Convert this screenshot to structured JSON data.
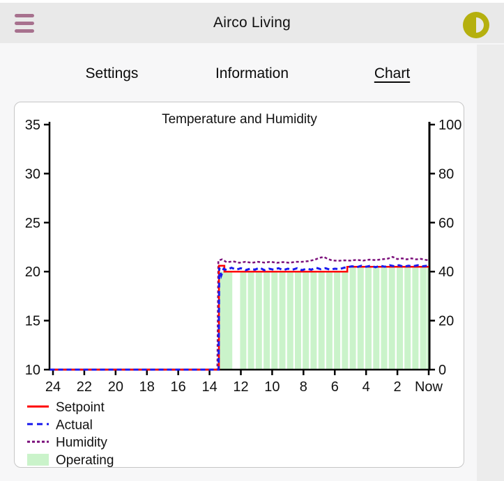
{
  "header": {
    "title": "Airco Living"
  },
  "icons": {
    "menu": "hamburger-icon",
    "theme": "contrast-half-circle-icon"
  },
  "colors": {
    "header_bg": "#e9e9e9",
    "menu_icon": "#a7718e",
    "theme_icon": "#b5b00f",
    "setpoint": "#ff0000",
    "actual": "#1a1aee",
    "humidity": "#7c117c",
    "operating_fill": "#caf3ca"
  },
  "tabs": [
    {
      "label": "Settings",
      "active": false
    },
    {
      "label": "Information",
      "active": false
    },
    {
      "label": "Chart",
      "active": true
    }
  ],
  "chart_data": {
    "type": "line",
    "title": "Temperature and Humidity",
    "x_axis": {
      "labels": [
        "24",
        "22",
        "20",
        "18",
        "16",
        "14",
        "12",
        "10",
        "8",
        "6",
        "4",
        "2",
        "Now"
      ],
      "hours_range": [
        24,
        0
      ]
    },
    "y_left": {
      "ticks": [
        10,
        15,
        20,
        25,
        30,
        35
      ],
      "range": [
        10,
        35
      ]
    },
    "y_right": {
      "ticks": [
        0,
        20,
        40,
        60,
        80,
        100
      ],
      "range": [
        0,
        100
      ]
    },
    "series": [
      {
        "name": "Humidity",
        "axis": "right",
        "color": "#7c117c",
        "width": 2.5,
        "dash": "4,3",
        "points": [
          [
            24.2,
            0
          ],
          [
            13.5,
            0
          ],
          [
            13.44,
            44.5
          ],
          [
            13.2,
            45
          ],
          [
            12.9,
            43.8
          ],
          [
            12.5,
            44.2
          ],
          [
            12.1,
            43.6
          ],
          [
            11.7,
            44
          ],
          [
            11.3,
            43.6
          ],
          [
            10.9,
            44
          ],
          [
            10.5,
            43.7
          ],
          [
            10.1,
            44
          ],
          [
            9.7,
            43.6
          ],
          [
            9.3,
            43.9
          ],
          [
            8.9,
            43.6
          ],
          [
            8.5,
            44
          ],
          [
            8.1,
            44
          ],
          [
            7.7,
            44.3
          ],
          [
            7.3,
            44.8
          ],
          [
            7.0,
            45.6
          ],
          [
            6.7,
            46
          ],
          [
            6.45,
            45.2
          ],
          [
            6.2,
            44.6
          ],
          [
            5.8,
            44.4
          ],
          [
            5.4,
            44.6
          ],
          [
            5.0,
            44.5
          ],
          [
            4.6,
            44.8
          ],
          [
            4.2,
            44.5
          ],
          [
            3.8,
            44.9
          ],
          [
            3.4,
            44.7
          ],
          [
            3.0,
            45
          ],
          [
            2.6,
            45.3
          ],
          [
            2.3,
            46
          ],
          [
            2.0,
            45.1
          ],
          [
            1.7,
            45.4
          ],
          [
            1.4,
            45
          ],
          [
            1.1,
            45.4
          ],
          [
            0.8,
            45
          ],
          [
            0.5,
            45.2
          ],
          [
            0.2,
            44.8
          ],
          [
            0,
            44.6
          ]
        ]
      },
      {
        "name": "Setpoint",
        "axis": "left",
        "color": "#ff0000",
        "width": 2.5,
        "points": [
          [
            24.2,
            10
          ],
          [
            13.4,
            10
          ],
          [
            13.4,
            20.6
          ],
          [
            13.05,
            20.6
          ],
          [
            13.05,
            20
          ],
          [
            5.2,
            20
          ],
          [
            5.2,
            20.5
          ],
          [
            0,
            20.5
          ]
        ]
      },
      {
        "name": "Actual",
        "axis": "left",
        "color": "#1a1aee",
        "width": 3,
        "dash": "7,5",
        "points": [
          [
            24.2,
            10
          ],
          [
            13.42,
            10
          ],
          [
            13.38,
            20.4
          ],
          [
            13.25,
            19.6
          ],
          [
            13.1,
            20.3
          ],
          [
            12.9,
            20.15
          ],
          [
            12.6,
            20.4
          ],
          [
            12.3,
            20.2
          ],
          [
            12.0,
            20.35
          ],
          [
            11.7,
            20.15
          ],
          [
            11.4,
            20.3
          ],
          [
            11.1,
            20.2
          ],
          [
            10.8,
            20.4
          ],
          [
            10.5,
            20.15
          ],
          [
            10.2,
            20.3
          ],
          [
            9.9,
            20.2
          ],
          [
            9.6,
            20.35
          ],
          [
            9.3,
            20.15
          ],
          [
            9.0,
            20.3
          ],
          [
            8.7,
            20.2
          ],
          [
            8.4,
            20.35
          ],
          [
            8.1,
            20.15
          ],
          [
            7.8,
            20.3
          ],
          [
            7.5,
            20.2
          ],
          [
            7.2,
            20.4
          ],
          [
            6.9,
            20.25
          ],
          [
            6.6,
            20.35
          ],
          [
            6.3,
            20.2
          ],
          [
            6.0,
            20.3
          ],
          [
            5.7,
            20.25
          ],
          [
            5.4,
            20.4
          ],
          [
            5.2,
            20.45
          ],
          [
            4.9,
            20.55
          ],
          [
            4.6,
            20.45
          ],
          [
            4.3,
            20.6
          ],
          [
            4.0,
            20.5
          ],
          [
            3.7,
            20.6
          ],
          [
            3.4,
            20.45
          ],
          [
            3.1,
            20.6
          ],
          [
            2.8,
            20.5
          ],
          [
            2.5,
            20.65
          ],
          [
            2.2,
            20.55
          ],
          [
            1.9,
            20.65
          ],
          [
            1.6,
            20.5
          ],
          [
            1.3,
            20.6
          ],
          [
            1.0,
            20.55
          ],
          [
            0.7,
            20.65
          ],
          [
            0.4,
            20.55
          ],
          [
            0.1,
            20.6
          ],
          [
            0,
            20.6
          ]
        ]
      }
    ],
    "operating": {
      "name": "Operating",
      "color": "#caf3ca",
      "top_follows": "Setpoint",
      "bars": [
        [
          13.4,
          12.55
        ],
        [
          12.05,
          11.65
        ],
        [
          11.55,
          11.15
        ],
        [
          11.05,
          10.65
        ],
        [
          10.55,
          10.15
        ],
        [
          10.05,
          9.65
        ],
        [
          9.55,
          9.15
        ],
        [
          9.05,
          8.65
        ],
        [
          8.55,
          8.15
        ],
        [
          8.05,
          7.65
        ],
        [
          7.55,
          7.15
        ],
        [
          7.05,
          6.65
        ],
        [
          6.55,
          6.15
        ],
        [
          6.05,
          5.65
        ],
        [
          5.55,
          5.15
        ],
        [
          5.05,
          4.65
        ],
        [
          4.55,
          4.15
        ],
        [
          4.05,
          3.65
        ],
        [
          3.55,
          3.15
        ],
        [
          3.05,
          2.65
        ],
        [
          2.55,
          2.15
        ],
        [
          2.05,
          1.65
        ],
        [
          1.55,
          1.15
        ],
        [
          1.05,
          0.65
        ],
        [
          0.55,
          0.15
        ],
        [
          0.12,
          0
        ]
      ]
    },
    "legend": [
      {
        "label": "Setpoint",
        "swatch": "line-solid",
        "color": "#ff0000"
      },
      {
        "label": "Actual",
        "swatch": "line-dashed",
        "color": "#1a1aee",
        "dash": "8,6"
      },
      {
        "label": "Humidity",
        "swatch": "line-dashed",
        "color": "#7c117c",
        "dash": "4,3"
      },
      {
        "label": "Operating",
        "swatch": "rect",
        "color": "#caf3ca"
      }
    ]
  }
}
